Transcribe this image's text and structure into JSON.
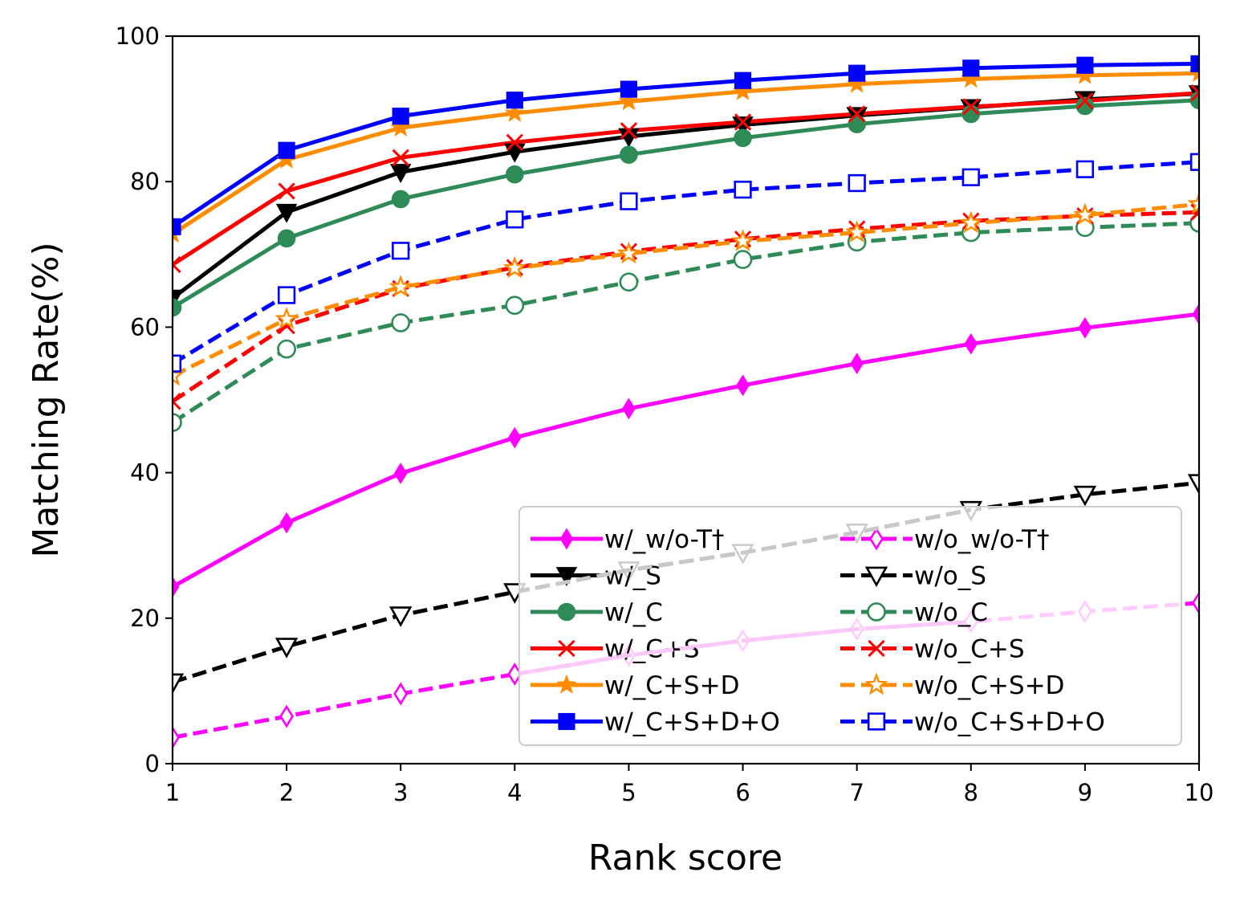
{
  "chart_data": {
    "type": "line",
    "title": "",
    "xlabel": "Rank score",
    "ylabel": "Matching Rate(%)",
    "xlim": [
      1,
      10
    ],
    "ylim": [
      0,
      100
    ],
    "xticks": [
      1,
      2,
      3,
      4,
      5,
      6,
      7,
      8,
      9,
      10
    ],
    "yticks": [
      0,
      20,
      40,
      60,
      80,
      100
    ],
    "legend_position": "bottom-right",
    "legend_columns": 2,
    "x": [
      1,
      2,
      3,
      4,
      5,
      6,
      7,
      8,
      9,
      10
    ],
    "series": [
      {
        "name": "w/_w/o-T†",
        "color": "#ff00ff",
        "marker": "diamond",
        "filled": true,
        "dashed": false,
        "values": [
          24.3,
          33.1,
          39.9,
          44.8,
          48.8,
          52.0,
          55.0,
          57.7,
          59.9,
          61.8
        ]
      },
      {
        "name": "w/_S",
        "color": "#000000",
        "marker": "triangle-down",
        "filled": true,
        "dashed": false,
        "values": [
          64.0,
          75.8,
          81.3,
          84.1,
          86.2,
          87.8,
          89.1,
          90.2,
          91.3,
          92.1
        ]
      },
      {
        "name": "w/_C",
        "color": "#2e8b57",
        "marker": "circle",
        "filled": true,
        "dashed": false,
        "values": [
          62.7,
          72.2,
          77.6,
          81.0,
          83.7,
          86.0,
          87.9,
          89.3,
          90.4,
          91.2
        ]
      },
      {
        "name": "w/_C+S",
        "color": "#ff0000",
        "marker": "x",
        "filled": true,
        "dashed": false,
        "values": [
          68.6,
          78.7,
          83.3,
          85.4,
          87.0,
          88.2,
          89.3,
          90.3,
          91.1,
          92.2
        ]
      },
      {
        "name": "w/_C+S+D",
        "color": "#ff8c00",
        "marker": "star",
        "filled": true,
        "dashed": false,
        "values": [
          72.8,
          83.0,
          87.4,
          89.4,
          91.0,
          92.4,
          93.4,
          94.1,
          94.6,
          94.9
        ]
      },
      {
        "name": "w/_C+S+D+O",
        "color": "#0000ff",
        "marker": "square",
        "filled": true,
        "dashed": false,
        "values": [
          73.8,
          84.3,
          89.0,
          91.2,
          92.7,
          93.9,
          94.9,
          95.6,
          96.0,
          96.2
        ]
      },
      {
        "name": "w/o_w/o-T†",
        "color": "#ff00ff",
        "marker": "diamond",
        "filled": false,
        "dashed": true,
        "values": [
          3.6,
          6.5,
          9.6,
          12.3,
          14.9,
          16.9,
          18.5,
          19.5,
          20.9,
          22.1
        ]
      },
      {
        "name": "w/o_S",
        "color": "#000000",
        "marker": "triangle-down",
        "filled": false,
        "dashed": true,
        "values": [
          11.2,
          16.1,
          20.4,
          23.6,
          26.6,
          29.0,
          31.8,
          34.9,
          37.0,
          38.6
        ]
      },
      {
        "name": "w/o_C",
        "color": "#2e8b57",
        "marker": "circle",
        "filled": false,
        "dashed": true,
        "values": [
          46.9,
          57.0,
          60.6,
          63.0,
          66.2,
          69.3,
          71.7,
          73.0,
          73.7,
          74.3
        ]
      },
      {
        "name": "w/o_C+S",
        "color": "#ff0000",
        "marker": "x",
        "filled": false,
        "dashed": true,
        "values": [
          49.8,
          60.2,
          65.3,
          68.2,
          70.4,
          72.1,
          73.5,
          74.6,
          75.3,
          75.8
        ]
      },
      {
        "name": "w/o_C+S+D",
        "color": "#ff8c00",
        "marker": "star",
        "filled": false,
        "dashed": true,
        "values": [
          53.3,
          61.1,
          65.5,
          68.1,
          70.1,
          71.8,
          73.0,
          74.3,
          75.4,
          76.9
        ]
      },
      {
        "name": "w/o_C+S+D+O",
        "color": "#0000ff",
        "marker": "square",
        "filled": false,
        "dashed": true,
        "values": [
          55.0,
          64.4,
          70.5,
          74.8,
          77.3,
          78.9,
          79.8,
          80.6,
          81.7,
          82.7
        ]
      }
    ]
  }
}
